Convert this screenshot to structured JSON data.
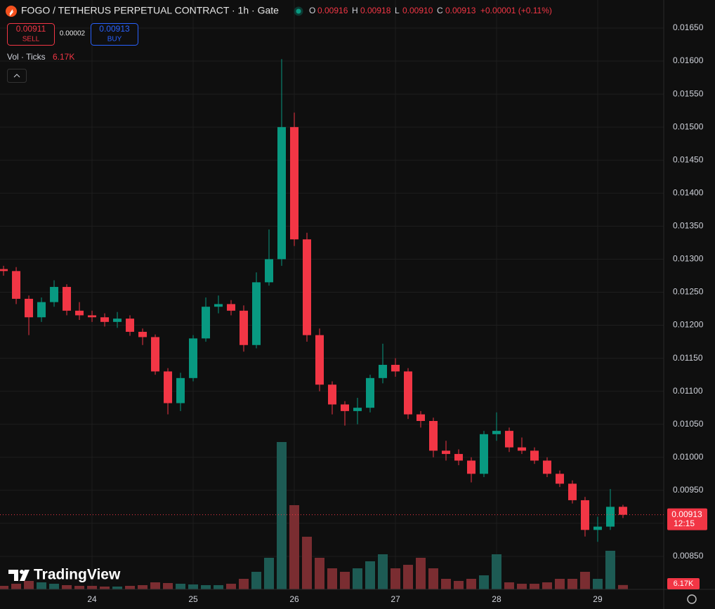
{
  "header": {
    "title": "FOGO / TETHERUS PERPETUAL CONTRACT · 1h · Gate",
    "ohlc": [
      {
        "label": "O",
        "value": "0.00916"
      },
      {
        "label": "H",
        "value": "0.00918"
      },
      {
        "label": "L",
        "value": "0.00910"
      },
      {
        "label": "C",
        "value": "0.00913"
      }
    ],
    "change": "+0.00001 (+0.11%)"
  },
  "trade": {
    "sell_price": "0.00911",
    "sell_label": "SELL",
    "spread": "0.00002",
    "buy_price": "0.00913",
    "buy_label": "BUY"
  },
  "indicator": {
    "name": "Vol · Ticks",
    "value": "6.17K"
  },
  "logo": "TradingView",
  "chart_data": {
    "type": "candlestick",
    "x": [
      23.125,
      23.25,
      23.375,
      23.5,
      23.625,
      23.75,
      23.875,
      24,
      24.125,
      24.25,
      24.375,
      24.5,
      24.625,
      24.75,
      24.875,
      25,
      25.125,
      25.25,
      25.375,
      25.5,
      25.625,
      25.75,
      25.875,
      26,
      26.125,
      26.25,
      26.375,
      26.5,
      26.625,
      26.75,
      26.875,
      27,
      27.125,
      27.25,
      27.375,
      27.5,
      27.625,
      27.75,
      27.875,
      28,
      28.125,
      28.25,
      28.375,
      28.5,
      28.625,
      28.75,
      28.875,
      29,
      29.125,
      29.25
    ],
    "open": [
      0.01285,
      0.01282,
      0.0124,
      0.01212,
      0.01235,
      0.01258,
      0.01222,
      0.01215,
      0.01212,
      0.01205,
      0.0121,
      0.0119,
      0.01182,
      0.0113,
      0.01082,
      0.0112,
      0.0118,
      0.01228,
      0.01232,
      0.01222,
      0.0117,
      0.01265,
      0.013,
      0.015,
      0.0133,
      0.01185,
      0.0111,
      0.0108,
      0.0107,
      0.01075,
      0.0112,
      0.0114,
      0.0113,
      0.01065,
      0.01055,
      0.0101,
      0.01005,
      0.00995,
      0.00975,
      0.01035,
      0.0104,
      0.01015,
      0.0101,
      0.00995,
      0.00975,
      0.0096,
      0.00935,
      0.0089,
      0.00895,
      0.00925
    ],
    "high": [
      0.0129,
      0.01288,
      0.01245,
      0.01242,
      0.01268,
      0.01262,
      0.01235,
      0.01222,
      0.01218,
      0.0122,
      0.01215,
      0.01195,
      0.01186,
      0.01135,
      0.01128,
      0.01185,
      0.01242,
      0.01245,
      0.01238,
      0.0123,
      0.0128,
      0.01345,
      0.01603,
      0.01522,
      0.0134,
      0.01195,
      0.01115,
      0.01085,
      0.0109,
      0.01125,
      0.01172,
      0.0115,
      0.01135,
      0.0107,
      0.0106,
      0.01025,
      0.01012,
      0.01,
      0.0104,
      0.01068,
      0.01045,
      0.0103,
      0.01015,
      0.01,
      0.0098,
      0.00965,
      0.0094,
      0.0091,
      0.00952,
      0.00928
    ],
    "low": [
      0.01275,
      0.01232,
      0.01185,
      0.01205,
      0.01228,
      0.01215,
      0.01208,
      0.01205,
      0.01198,
      0.01196,
      0.01184,
      0.0117,
      0.01125,
      0.01065,
      0.0107,
      0.01115,
      0.01175,
      0.01218,
      0.01215,
      0.0116,
      0.01165,
      0.0126,
      0.0129,
      0.0132,
      0.01175,
      0.011,
      0.01065,
      0.01048,
      0.0105,
      0.01068,
      0.01112,
      0.01122,
      0.01058,
      0.01045,
      0.01,
      0.00995,
      0.00988,
      0.00962,
      0.0097,
      0.01025,
      0.01008,
      0.01005,
      0.0099,
      0.0097,
      0.00955,
      0.0093,
      0.0088,
      0.00872,
      0.0089,
      0.00908
    ],
    "close": [
      0.01282,
      0.0124,
      0.01212,
      0.01235,
      0.01258,
      0.01222,
      0.01215,
      0.01212,
      0.01205,
      0.0121,
      0.0119,
      0.01182,
      0.0113,
      0.01082,
      0.0112,
      0.0118,
      0.01228,
      0.01232,
      0.01222,
      0.0117,
      0.01265,
      0.013,
      0.015,
      0.0133,
      0.01185,
      0.0111,
      0.0108,
      0.0107,
      0.01075,
      0.0112,
      0.0114,
      0.0113,
      0.01065,
      0.01055,
      0.0101,
      0.01005,
      0.00995,
      0.00975,
      0.01035,
      0.0104,
      0.01015,
      0.0101,
      0.00995,
      0.00975,
      0.0096,
      0.00935,
      0.0089,
      0.00895,
      0.00925,
      0.00913
    ],
    "volume": [
      5,
      8,
      12,
      10,
      8,
      6,
      5,
      5,
      4,
      4,
      5,
      6,
      10,
      9,
      8,
      7,
      6,
      6,
      8,
      15,
      25,
      45,
      210,
      120,
      75,
      45,
      30,
      25,
      30,
      40,
      50,
      30,
      35,
      45,
      30,
      15,
      12,
      15,
      20,
      50,
      10,
      8,
      8,
      10,
      15,
      15,
      25,
      15,
      55,
      6.17
    ],
    "volume_ylim": [
      0,
      300
    ],
    "xlim": [
      23.09,
      29.653
    ],
    "xticks": [
      24,
      25,
      26,
      27,
      28,
      29
    ],
    "ylim": [
      0.008,
      0.016925
    ],
    "yticks": [
      {
        "value": 0.0085,
        "label": "0.00850"
      },
      {
        "value": 0.009,
        "label": "0.00900"
      },
      {
        "value": 0.0095,
        "label": "0.00950"
      },
      {
        "value": 0.01,
        "label": "0.01000"
      },
      {
        "value": 0.0105,
        "label": "0.01050"
      },
      {
        "value": 0.011,
        "label": "0.01100"
      },
      {
        "value": 0.0115,
        "label": "0.01150"
      },
      {
        "value": 0.012,
        "label": "0.01200"
      },
      {
        "value": 0.0125,
        "label": "0.01250"
      },
      {
        "value": 0.013,
        "label": "0.01300"
      },
      {
        "value": 0.0135,
        "label": "0.01350"
      },
      {
        "value": 0.014,
        "label": "0.01400"
      },
      {
        "value": 0.0145,
        "label": "0.01450"
      },
      {
        "value": 0.015,
        "label": "0.01500"
      },
      {
        "value": 0.0155,
        "label": "0.01550"
      },
      {
        "value": 0.016,
        "label": "0.01600"
      },
      {
        "value": 0.0165,
        "label": "0.01650"
      }
    ],
    "last_price": {
      "value": 0.00913,
      "label": "0.00913"
    },
    "countdown": "12:15",
    "volume_last_label": "6.17K",
    "up_color": "#089981",
    "down_color": "#f23645",
    "up_volume_color": "#1d5b54",
    "down_volume_color": "#7a2d31",
    "grid": true
  }
}
